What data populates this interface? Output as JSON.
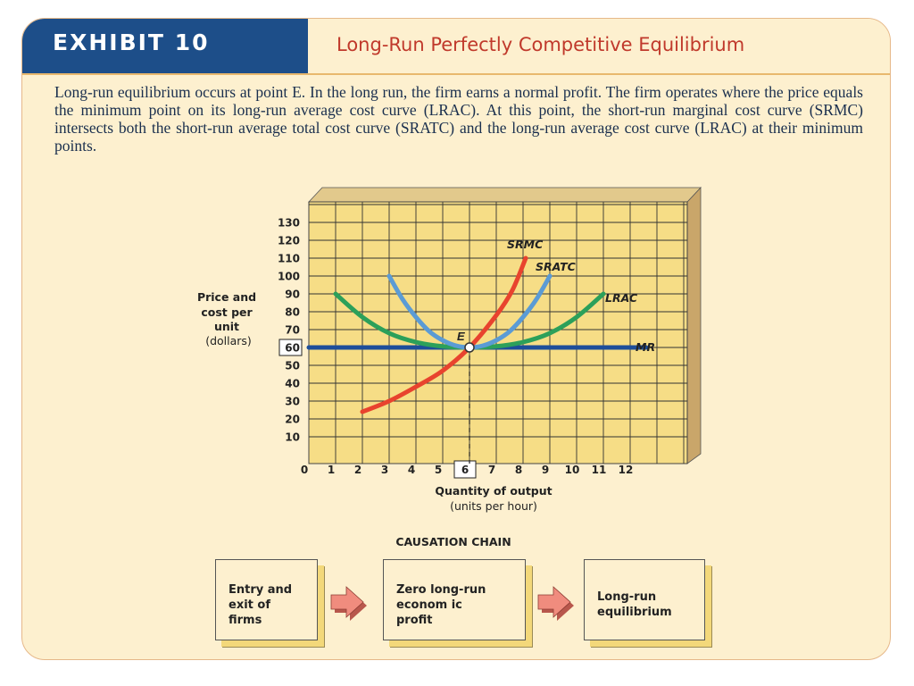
{
  "header": {
    "exhibit_label": "EXHIBIT 10",
    "title": "Long-Run Perfectly Competitive Equilibrium"
  },
  "intro_text": "Long-run equilibrium occurs at point E. In the long run, the firm earns a normal profit. The firm operates where the price equals the minimum point on its long-run average cost curve (LRAC). At this point, the short-run marginal cost curve (SRMC) intersects both the short-run average total cost curve (SRATC) and the long-run average cost curve (LRAC) at their minimum points.",
  "chart_data": {
    "type": "line",
    "ylabel_lines": [
      "Price and",
      "cost per",
      "unit",
      "(dollars)"
    ],
    "xlabel": "Quantity of output",
    "xlabel_sub": "(units per hour)",
    "x_ticks": [
      "0",
      "1",
      "2",
      "3",
      "4",
      "5",
      "6",
      "7",
      "8",
      "9",
      "10",
      "11",
      "12"
    ],
    "y_ticks": [
      "10",
      "20",
      "30",
      "40",
      "50",
      "60",
      "70",
      "80",
      "90",
      "100",
      "110",
      "120",
      "130"
    ],
    "highlighted_x": 6,
    "highlighted_y": 60,
    "xlim": [
      0,
      12.5
    ],
    "ylim": [
      0,
      135
    ],
    "grid": true,
    "series": [
      {
        "name": "SRMC",
        "color": "#e8432e",
        "points": [
          [
            2,
            24
          ],
          [
            3,
            30
          ],
          [
            4,
            38
          ],
          [
            5,
            47
          ],
          [
            6,
            60
          ],
          [
            7,
            78
          ],
          [
            7.6,
            92
          ],
          [
            8.1,
            110
          ]
        ]
      },
      {
        "name": "SRATC",
        "color": "#5b9bd5",
        "points": [
          [
            3,
            100
          ],
          [
            3.5,
            87
          ],
          [
            4,
            77
          ],
          [
            4.5,
            69
          ],
          [
            5,
            64
          ],
          [
            5.5,
            61
          ],
          [
            6,
            60
          ],
          [
            6.5,
            61
          ],
          [
            7,
            64
          ],
          [
            7.5,
            69
          ],
          [
            8,
            77
          ],
          [
            8.5,
            87
          ],
          [
            9,
            100
          ]
        ]
      },
      {
        "name": "LRAC",
        "color": "#2ca05a",
        "points": [
          [
            1,
            90
          ],
          [
            2,
            77
          ],
          [
            3,
            68
          ],
          [
            4,
            63
          ],
          [
            5,
            60.6
          ],
          [
            6,
            60
          ],
          [
            7,
            60.6
          ],
          [
            8,
            63
          ],
          [
            9,
            68
          ],
          [
            10,
            77
          ],
          [
            11,
            90
          ]
        ]
      },
      {
        "name": "MR",
        "color": "#1d4e9a",
        "points": [
          [
            0,
            60
          ],
          [
            12.6,
            60
          ]
        ]
      }
    ],
    "point_label": "E",
    "point": [
      6,
      60
    ]
  },
  "causation": {
    "title": "CAUSATION CHAIN",
    "boxes": [
      {
        "lines": [
          "Entry and",
          "exit of",
          "firms"
        ]
      },
      {
        "lines": [
          "Zero long-run",
          "econom ic",
          "profit"
        ]
      },
      {
        "lines": [
          "Long-run",
          "equilibrium"
        ]
      }
    ],
    "arrow_color": "#e8837a"
  }
}
